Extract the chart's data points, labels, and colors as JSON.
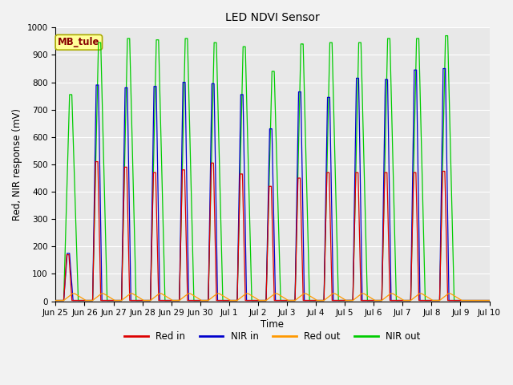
{
  "title": "LED NDVI Sensor",
  "xlabel": "Time",
  "ylabel": "Red, NIR response (mV)",
  "ylim": [
    0,
    1000
  ],
  "annotation_text": "MB_tule",
  "annotation_bg": "#FFFF99",
  "annotation_border": "#AAAA00",
  "annotation_text_color": "#880000",
  "plot_bg_color": "#E8E8E8",
  "fig_bg_color": "#F2F2F2",
  "grid_color": "#FFFFFF",
  "colors": {
    "Red in": "#DD0000",
    "NIR in": "#0000CC",
    "Red out": "#FF9900",
    "NIR out": "#00CC00"
  },
  "total_days": 15,
  "num_cycles": 14,
  "cycle_starts": [
    0.28,
    1.28,
    2.28,
    3.28,
    4.28,
    5.28,
    6.28,
    7.28,
    8.28,
    9.28,
    10.28,
    11.28,
    12.28,
    13.28
  ],
  "peak_red_in": [
    170,
    510,
    490,
    470,
    480,
    505,
    465,
    420,
    450,
    470,
    470,
    470,
    470,
    475
  ],
  "peak_nir_in": [
    175,
    790,
    780,
    785,
    800,
    795,
    755,
    630,
    765,
    745,
    815,
    810,
    845,
    850
  ],
  "peak_nir_out": [
    755,
    945,
    960,
    955,
    960,
    945,
    930,
    840,
    940,
    945,
    945,
    960,
    960,
    970
  ],
  "peak_red_out": [
    28,
    28,
    28,
    28,
    28,
    28,
    28,
    28,
    28,
    28,
    28,
    28,
    28,
    28
  ],
  "rise_red": 0.1,
  "fall_red": 0.1,
  "rise_nir": 0.12,
  "fall_nir": 0.12,
  "rise_nir_out": 0.2,
  "fall_nir_out": 0.22,
  "rise_red_out": 0.3,
  "fall_red_out": 0.38,
  "base": 3,
  "tick_positions": [
    0,
    1,
    2,
    3,
    4,
    5,
    6,
    7,
    8,
    9,
    10,
    11,
    12,
    13,
    14,
    15
  ],
  "tick_labels": [
    "Jun 25",
    "Jun 26",
    "Jun 27",
    "Jun 28",
    "Jun 29",
    "Jun 30",
    "Jul 1",
    "Jul 2",
    "Jul 3",
    "Jul 4",
    "Jul 5",
    "Jul 6",
    "Jul 7",
    "Jul 8",
    "Jul 9",
    "Jul 10"
  ]
}
